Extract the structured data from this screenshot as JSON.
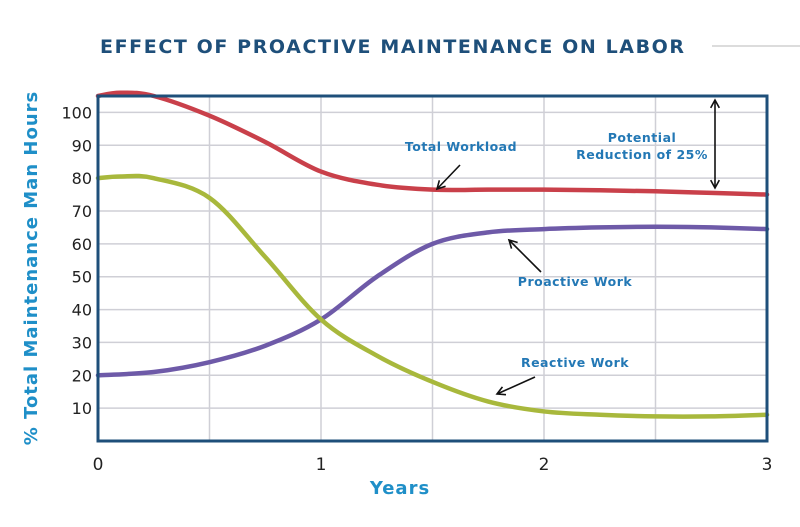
{
  "chart_data": {
    "type": "line",
    "title": "EFFECT OF PROACTIVE MAINTENANCE ON LABOR",
    "xlabel": "Years",
    "ylabel": "% Total Maintenance Man Hours",
    "xlim": [
      0,
      3
    ],
    "ylim": [
      0,
      105
    ],
    "x_ticks": [
      "0",
      "1",
      "2",
      "3"
    ],
    "y_ticks": [
      "10",
      "20",
      "30",
      "40",
      "50",
      "60",
      "70",
      "80",
      "90",
      "100"
    ],
    "grid": true,
    "series": [
      {
        "name": "Total Workload",
        "color": "#c9404a",
        "x": [
          0,
          0.1,
          0.25,
          0.5,
          0.75,
          1.0,
          1.25,
          1.5,
          1.75,
          2.0,
          2.25,
          2.5,
          2.75,
          3.0
        ],
        "values": [
          105,
          106,
          105,
          99,
          91,
          82,
          78,
          76.5,
          76.5,
          76.5,
          76.3,
          76,
          75.5,
          75
        ]
      },
      {
        "name": "Proactive Work",
        "color": "#6e5aa8",
        "x": [
          0,
          0.25,
          0.5,
          0.75,
          1.0,
          1.25,
          1.5,
          1.75,
          2.0,
          2.25,
          2.5,
          2.75,
          3.0
        ],
        "values": [
          20,
          21,
          24,
          29,
          37,
          50,
          60,
          63.5,
          64.5,
          65,
          65.2,
          65,
          64.5
        ]
      },
      {
        "name": "Reactive Work",
        "color": "#a8b83c",
        "x": [
          0,
          0.1,
          0.25,
          0.5,
          0.75,
          1.0,
          1.25,
          1.5,
          1.75,
          2.0,
          2.25,
          2.5,
          2.75,
          3.0
        ],
        "values": [
          80,
          80.5,
          80,
          74,
          56,
          37,
          26,
          18,
          12,
          9,
          8,
          7.5,
          7.5,
          8
        ]
      }
    ],
    "annotations": {
      "total_workload": "Total Workload",
      "proactive_work": "Proactive Work",
      "reactive_work": "Reactive Work",
      "reduction_line1": "Potential",
      "reduction_line2": "Reduction of 25%"
    }
  },
  "colors": {
    "title": "#1e4f7a",
    "axis_label": "#1f8fc8",
    "annotation": "#2378b5",
    "frame": "#1e4f7a",
    "grid": "#cfcfd6",
    "title_rule": "#dcdcdc"
  }
}
